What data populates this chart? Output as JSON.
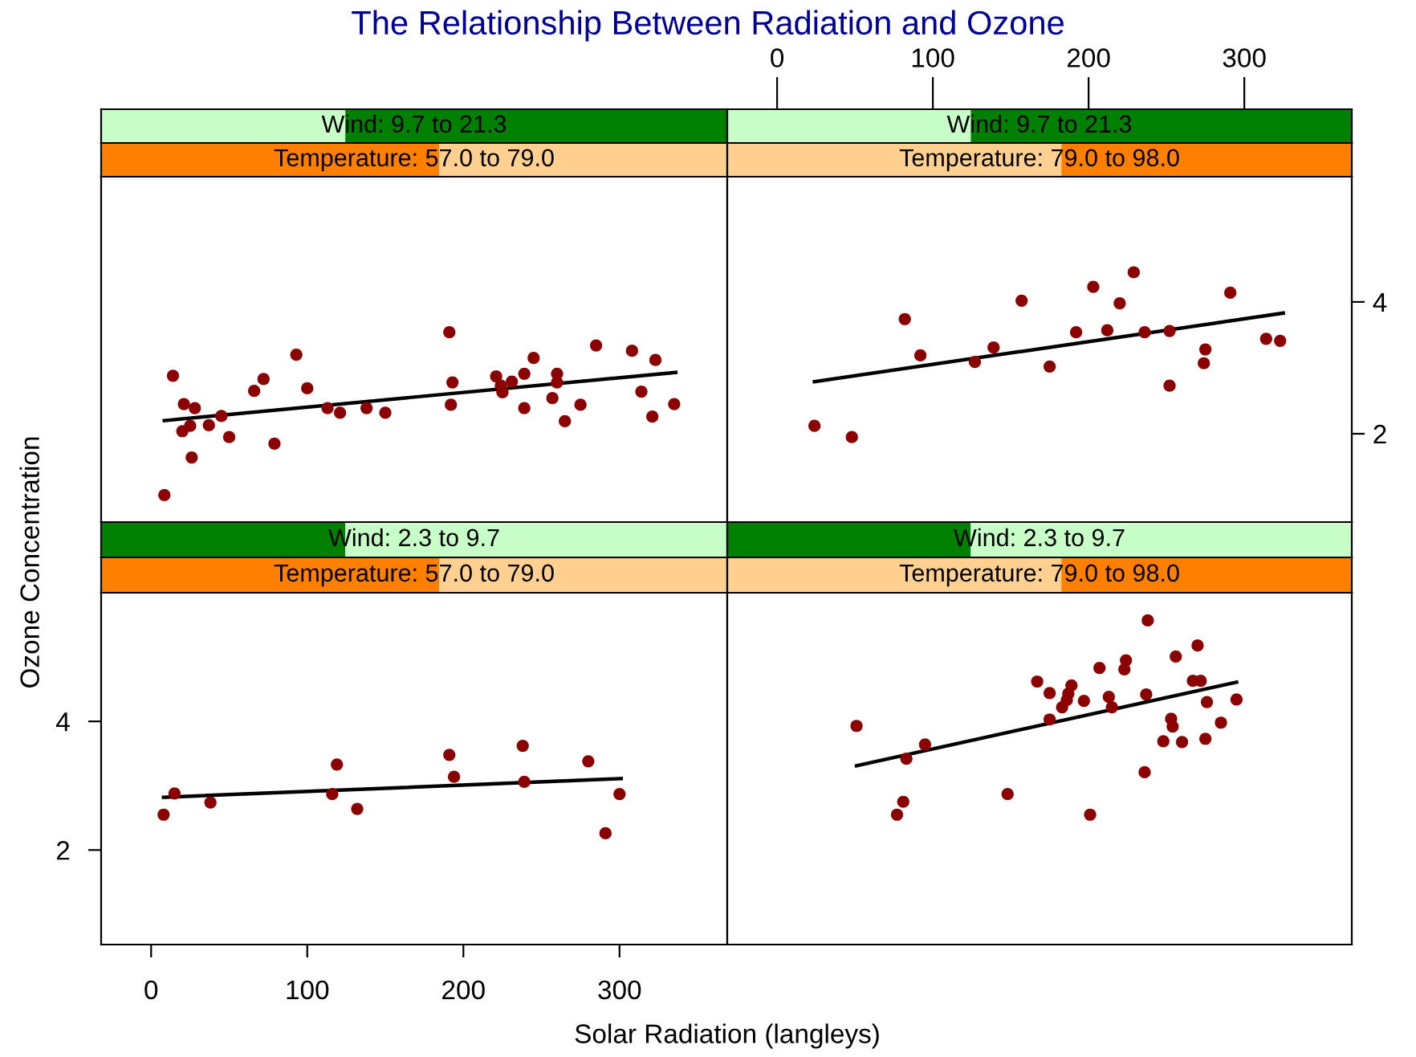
{
  "chart_data": [
    {
      "type": "scatter",
      "title": "The Relationship Between Radiation and Ozone",
      "xlabel": "Solar Radiation (langleys)",
      "ylabel": "Ozone Concentration",
      "annotations": [
        "Wind: 9.7 to 21.3",
        "Temperature: 57.0 to 79.0"
      ],
      "xlim": [
        -32,
        369
      ],
      "xticks": [
        0,
        100,
        200,
        300
      ],
      "ylim": [
        0.66,
        5.9
      ],
      "yticks": [
        2,
        4
      ],
      "tick_labels": false,
      "series": [
        {
          "marker": "circle",
          "color": "#8b0000",
          "x": [
            8.5,
            14,
            21,
            28,
            20,
            25,
            26,
            37,
            45,
            50,
            66,
            72,
            79,
            93,
            100,
            113,
            121,
            138,
            150,
            191,
            193,
            192,
            221,
            224,
            225,
            231,
            239,
            239,
            245,
            260,
            260,
            257,
            265,
            275,
            285,
            308,
            314,
            323,
            321,
            335
          ],
          "values": [
            1.07,
            2.88,
            2.45,
            2.39,
            2.04,
            2.12,
            1.64,
            2.13,
            2.27,
            1.95,
            2.65,
            2.83,
            1.85,
            3.2,
            2.69,
            2.39,
            2.32,
            2.39,
            2.32,
            3.54,
            2.78,
            2.44,
            2.87,
            2.73,
            2.63,
            2.79,
            2.91,
            2.39,
            3.15,
            2.91,
            2.78,
            2.54,
            2.19,
            2.44,
            3.34,
            3.26,
            2.64,
            3.12,
            2.26,
            2.45
          ]
        },
        {
          "type": "line",
          "color": "#000000",
          "x": [
            8.5,
            336
          ],
          "values": [
            2.2,
            2.93
          ]
        }
      ]
    },
    {
      "type": "scatter",
      "annotations": [
        "Wind: 9.7 to 21.3",
        "Temperature: 79.0 to 98.0"
      ],
      "xlim": [
        -32,
        369
      ],
      "xticks": [
        0,
        100,
        200,
        300
      ],
      "ylim": [
        0.66,
        5.9
      ],
      "yticks": [
        2,
        4
      ],
      "series": [
        {
          "marker": "circle",
          "color": "#8b0000",
          "x": [
            24,
            48,
            82,
            92,
            127,
            139,
            157,
            175,
            192,
            203,
            212,
            220,
            229,
            236,
            252,
            252,
            275,
            274,
            291,
            314,
            323
          ],
          "values": [
            2.12,
            1.95,
            3.74,
            3.19,
            3.09,
            3.31,
            4.02,
            3.02,
            3.54,
            4.23,
            3.57,
            3.98,
            4.45,
            3.54,
            3.56,
            2.73,
            3.28,
            3.07,
            4.14,
            3.44,
            3.41
          ]
        },
        {
          "type": "line",
          "color": "#000000",
          "x": [
            24,
            325
          ],
          "values": [
            2.79,
            3.83
          ]
        }
      ]
    },
    {
      "type": "scatter",
      "annotations": [
        "Wind: 2.3 to 9.7",
        "Temperature: 57.0 to 79.0"
      ],
      "xlim": [
        -32,
        369
      ],
      "xticks": [
        0,
        100,
        200,
        300
      ],
      "ylim": [
        0.53,
        6.0
      ],
      "yticks": [
        2,
        4
      ],
      "series": [
        {
          "marker": "circle",
          "color": "#8b0000",
          "x": [
            8,
            15,
            38,
            119,
            116,
            132,
            191,
            194,
            238,
            239,
            280,
            291,
            300
          ],
          "values": [
            2.55,
            2.88,
            2.74,
            3.33,
            2.87,
            2.64,
            3.48,
            3.14,
            3.62,
            3.06,
            3.38,
            2.26,
            2.87
          ]
        },
        {
          "type": "line",
          "color": "#000000",
          "x": [
            8,
            301
          ],
          "values": [
            2.82,
            3.11
          ]
        }
      ]
    },
    {
      "type": "scatter",
      "annotations": [
        "Wind: 2.3 to 9.7",
        "Temperature: 79.0 to 98.0"
      ],
      "xlim": [
        -32,
        369
      ],
      "xticks": [
        0,
        100,
        200,
        300
      ],
      "ylim": [
        0.53,
        6.0
      ],
      "yticks": [
        2,
        4
      ],
      "tick_labels": false,
      "series": [
        {
          "marker": "circle",
          "color": "#8b0000",
          "x": [
            51,
            83,
            95,
            81,
            77,
            148,
            167,
            175,
            175,
            189,
            187,
            186,
            183,
            197,
            207,
            201,
            213,
            215,
            223,
            224,
            238,
            237,
            236,
            256,
            253,
            254,
            248,
            260,
            270,
            267,
            272,
            276,
            275,
            285,
            295
          ],
          "values": [
            3.93,
            3.42,
            3.64,
            2.75,
            2.55,
            2.87,
            4.62,
            4.44,
            4.03,
            4.56,
            4.43,
            4.33,
            4.22,
            4.32,
            4.83,
            2.55,
            4.38,
            4.22,
            4.81,
            4.95,
            5.57,
            4.42,
            3.21,
            5.01,
            4.04,
            3.92,
            3.69,
            3.68,
            5.18,
            4.63,
            4.63,
            4.3,
            3.73,
            3.98,
            4.34
          ]
        },
        {
          "type": "line",
          "color": "#000000",
          "x": [
            51,
            295
          ],
          "values": [
            3.31,
            4.61
          ]
        }
      ]
    }
  ]
}
